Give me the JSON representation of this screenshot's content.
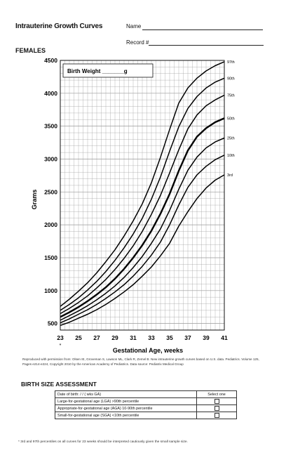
{
  "header": {
    "title": "Intrauterine Growth Curves",
    "name_label": "Name",
    "record_label": "Record #"
  },
  "section_label": "FEMALES",
  "chart_data": {
    "type": "line",
    "title": "",
    "inset_label": "Birth Weight _______g",
    "xlabel": "Gestational Age, weeks",
    "ylabel": "Grams",
    "xlim": [
      23,
      41
    ],
    "ylim": [
      400,
      4500
    ],
    "x_ticks": [
      "23",
      "25",
      "27",
      "29",
      "31",
      "33",
      "35",
      "37",
      "39",
      "41"
    ],
    "y_ticks": [
      "500",
      "1000",
      "1500",
      "2000",
      "2500",
      "3000",
      "3500",
      "4000",
      "4500"
    ],
    "x_tick_note": "*",
    "grid": true,
    "x": [
      23,
      24,
      25,
      26,
      27,
      28,
      29,
      30,
      31,
      32,
      33,
      34,
      35,
      36,
      37,
      38,
      39,
      40,
      41
    ],
    "series": [
      {
        "name": "97th",
        "values": [
          760,
          870,
          990,
          1120,
          1270,
          1440,
          1620,
          1830,
          2060,
          2320,
          2640,
          3030,
          3450,
          3850,
          4080,
          4230,
          4340,
          4420,
          4480
        ]
      },
      {
        "name": "90th",
        "values": [
          700,
          790,
          890,
          1010,
          1140,
          1290,
          1460,
          1650,
          1860,
          2100,
          2390,
          2730,
          3120,
          3490,
          3770,
          3950,
          4080,
          4170,
          4230
        ]
      },
      {
        "name": "75th",
        "values": [
          650,
          730,
          820,
          920,
          1040,
          1170,
          1320,
          1490,
          1680,
          1900,
          2160,
          2450,
          2790,
          3140,
          3460,
          3670,
          3810,
          3900,
          3970
        ]
      },
      {
        "name": "50th",
        "values": [
          600,
          670,
          750,
          840,
          940,
          1050,
          1180,
          1330,
          1500,
          1690,
          1910,
          2170,
          2470,
          2820,
          3130,
          3340,
          3470,
          3560,
          3620
        ]
      },
      {
        "name": "25th",
        "values": [
          550,
          620,
          690,
          770,
          860,
          960,
          1070,
          1200,
          1350,
          1520,
          1720,
          1940,
          2220,
          2540,
          2830,
          3030,
          3170,
          3260,
          3320
        ]
      },
      {
        "name": "10th",
        "values": [
          510,
          570,
          640,
          710,
          790,
          880,
          980,
          1090,
          1220,
          1370,
          1540,
          1740,
          2000,
          2300,
          2570,
          2760,
          2890,
          2990,
          3060
        ]
      },
      {
        "name": "3rd",
        "values": [
          470,
          520,
          580,
          640,
          710,
          790,
          880,
          980,
          1090,
          1220,
          1360,
          1530,
          1720,
          1980,
          2200,
          2400,
          2560,
          2680,
          2760
        ]
      }
    ]
  },
  "source_note": "Reproduced with permission from: Olsen IE, Groveman S, Lawson ML, Clark R, Zemel B. New intrauterine growth curves based on U.S. data. Pediatrics. Volume 125, Pages e214-e224, Copyright 2010 by the American Academy of Pediatrics. Data source: Pediatrix Medical Group",
  "assessment": {
    "title": "BIRTH SIZE ASSESSMENT",
    "dob_label": "Date of birth:      /      /               (          wks GA)",
    "select_label": "Select one",
    "rows": [
      "Large-for-gestational age (LGA)  >90th percentile",
      "Appropriate-for-gestational age (AGA)  10-90th percentile",
      "Small-for-gestational age (SGA)  <10th percentile"
    ]
  },
  "footnote": "* 3rd and 97th percentiles on all curves for 23 weeks should be interpreted cautiously given the small sample size."
}
